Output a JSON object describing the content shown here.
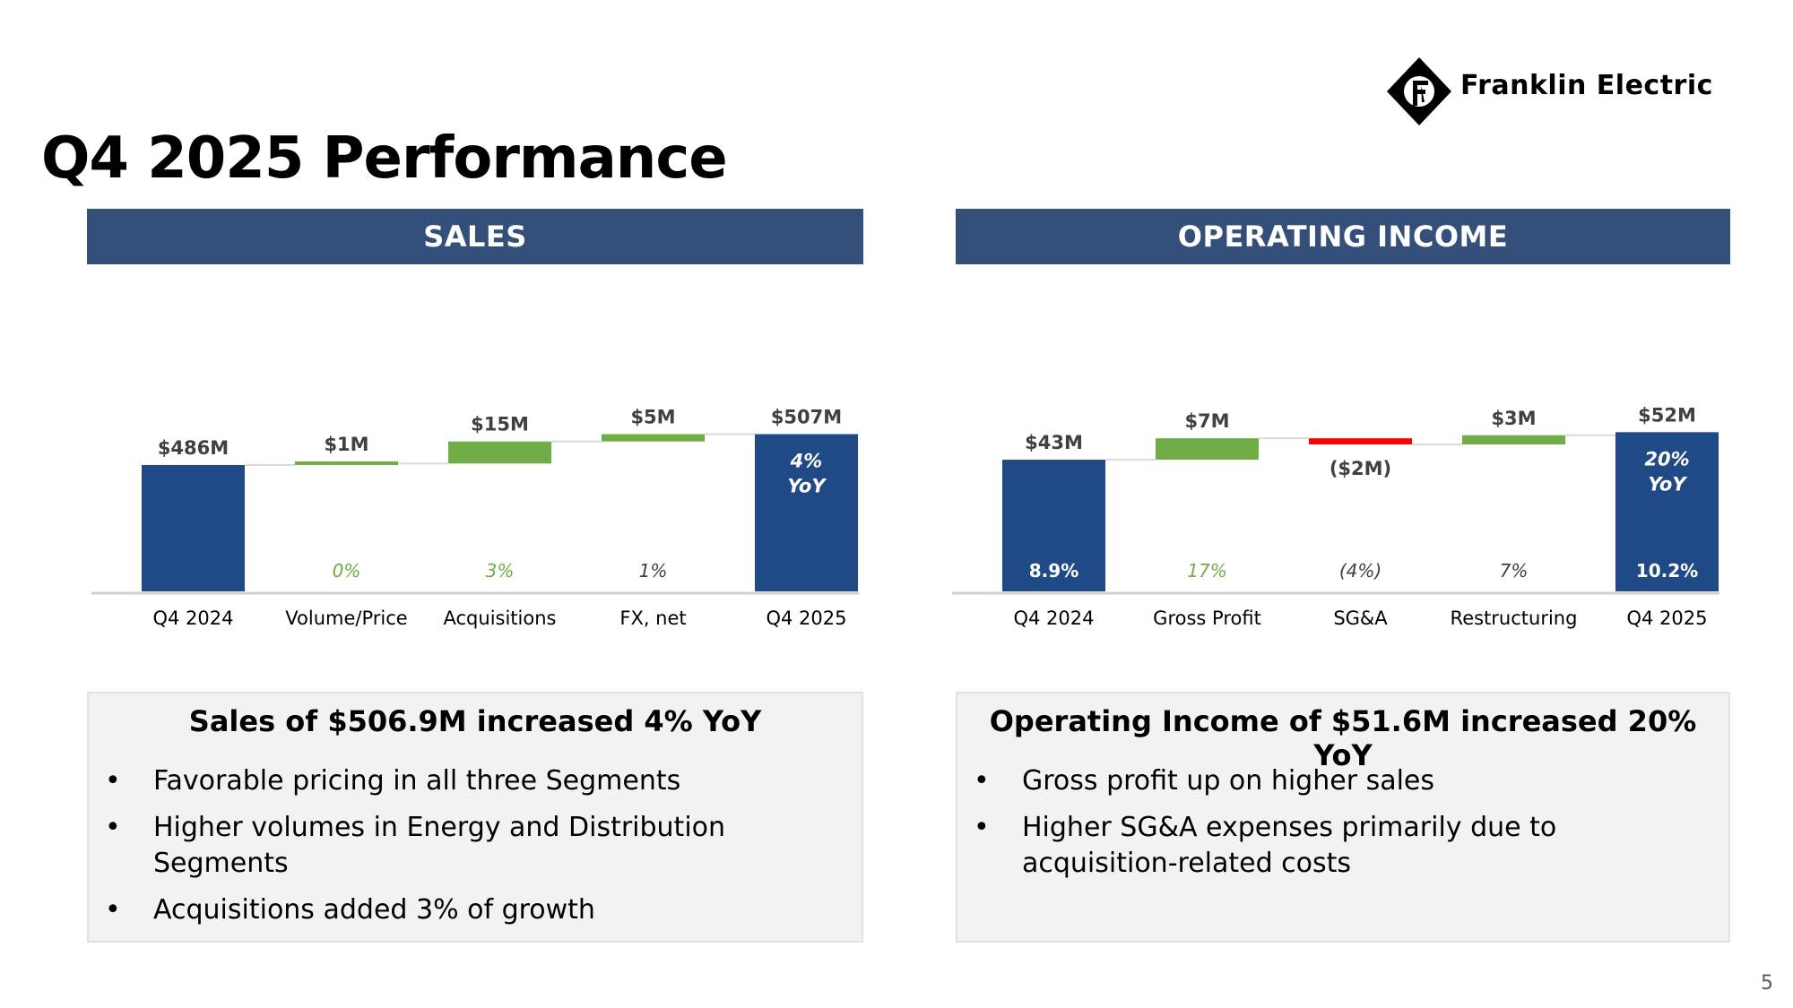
{
  "page": {
    "title": "Q4 2025 Performance",
    "page_number": "5"
  },
  "logo": {
    "text": "Franklin Electric",
    "icon": "franklin-diamond-logo-icon"
  },
  "colors": {
    "navy": "#1f4a85",
    "green": "#70ad47",
    "red": "#ff0000",
    "banner": "#34507a"
  },
  "sales": {
    "header": "SALES",
    "summary": {
      "headline": "Sales of $506.9M increased 4% YoY",
      "bullets": [
        "Favorable pricing in all three Segments",
        "Higher volumes in Energy and Distribution Segments",
        "Acquisitions added 3% of growth"
      ]
    }
  },
  "operating_income": {
    "header": "OPERATING INCOME",
    "summary": {
      "headline": "Operating Income of $51.6M increased 20% YoY",
      "bullets": [
        "Gross profit up on higher sales",
        "Higher SG&A expenses primarily due to acquisition-related costs"
      ]
    }
  },
  "chart_data": [
    {
      "type": "bar",
      "subtype": "waterfall",
      "title": "SALES",
      "categories": [
        "Q4 2024",
        "Volume/Price",
        "Acquisitions",
        "FX, net",
        "Q4 2025"
      ],
      "values": [
        486,
        1,
        15,
        5,
        507
      ],
      "kinds": [
        "total",
        "delta",
        "delta",
        "delta",
        "total"
      ],
      "value_labels": [
        "$486M",
        "$1M",
        "$15M",
        "$5M",
        "$507M"
      ],
      "bottom_labels": [
        "",
        "0%",
        "3%",
        "1%",
        ""
      ],
      "inbar_labels": [
        "",
        "",
        "",
        "",
        "4%|YoY"
      ],
      "ylim": [
        400,
        525
      ],
      "units": "$M"
    },
    {
      "type": "bar",
      "subtype": "waterfall",
      "title": "OPERATING INCOME",
      "categories": [
        "Q4 2024",
        "Gross Profit",
        "SG&A",
        "Restructuring",
        "Q4 2025"
      ],
      "values": [
        43,
        7,
        -2,
        3,
        52
      ],
      "kinds": [
        "total",
        "delta",
        "delta",
        "delta",
        "total"
      ],
      "value_labels": [
        "$43M",
        "$7M",
        "($2M)",
        "$3M",
        "$52M"
      ],
      "bottom_labels": [
        "8.9%",
        "17%",
        "(4%)",
        "7%",
        "10.2%"
      ],
      "inbar_labels": [
        "",
        "",
        "",
        "",
        "20%|YoY"
      ],
      "ylim": [
        0,
        60
      ],
      "units": "$M"
    }
  ]
}
